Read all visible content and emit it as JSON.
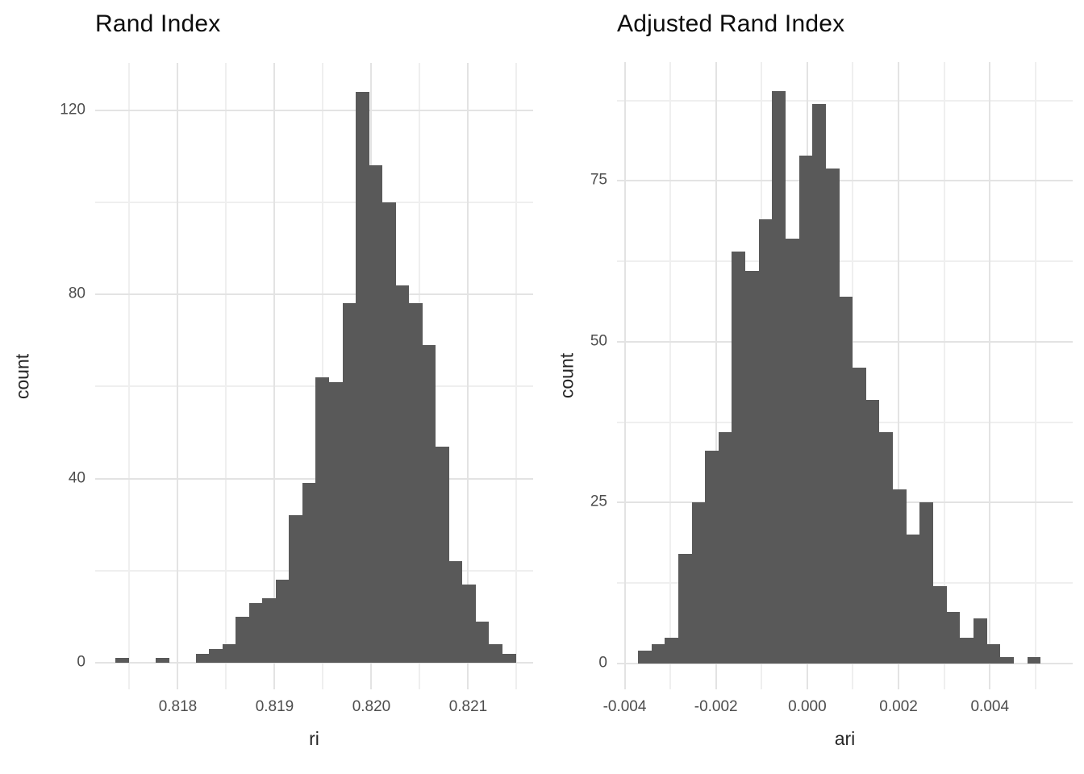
{
  "figure": {
    "background": "#ffffff"
  },
  "chart_data": [
    {
      "type": "histogram",
      "title": "Rand Index",
      "xlabel": "ri",
      "ylabel": "count",
      "bar_color": "#595959",
      "grid": {
        "major_color": "#e3e3e3",
        "minor_color": "#efefef",
        "grid_on": true
      },
      "legend": "none",
      "x_domain": [
        0.817146,
        0.821671
      ],
      "y_domain": [
        -5.78,
        130.25
      ],
      "x_ticks": [
        {
          "v": 0.818,
          "label": "0.818"
        },
        {
          "v": 0.819,
          "label": "0.819"
        },
        {
          "v": 0.82,
          "label": "0.820"
        },
        {
          "v": 0.821,
          "label": "0.821"
        }
      ],
      "y_ticks": [
        {
          "v": 0,
          "label": "0"
        },
        {
          "v": 40,
          "label": "40"
        },
        {
          "v": 80,
          "label": "80"
        },
        {
          "v": 120,
          "label": "120"
        }
      ],
      "x_minor": [
        0.8175,
        0.8185,
        0.8195,
        0.8205,
        0.8215
      ],
      "y_minor": [
        20,
        60,
        100
      ],
      "bins": {
        "start": 0.817358,
        "width": 0.0001378
      },
      "counts": [
        1,
        0,
        0,
        1,
        0,
        0,
        2,
        3,
        4,
        10,
        13,
        14,
        18,
        32,
        39,
        62,
        61,
        78,
        124,
        108,
        100,
        82,
        78,
        69,
        47,
        22,
        17,
        9,
        4,
        2
      ],
      "total_n": 1000
    },
    {
      "type": "histogram",
      "title": "Adjusted Rand Index",
      "xlabel": "ari",
      "ylabel": "count",
      "bar_color": "#595959",
      "grid": {
        "major_color": "#e3e3e3",
        "minor_color": "#efefef",
        "grid_on": true
      },
      "legend": "none",
      "x_domain": [
        -0.004168,
        0.005815
      ],
      "y_domain": [
        -4.05,
        93.49
      ],
      "x_ticks": [
        {
          "v": -0.004,
          "label": "-0.004"
        },
        {
          "v": -0.002,
          "label": "-0.002"
        },
        {
          "v": 0,
          "label": "0.000"
        },
        {
          "v": 0.002,
          "label": "0.002"
        },
        {
          "v": 0.004,
          "label": "0.004"
        }
      ],
      "y_ticks": [
        {
          "v": 0,
          "label": "0"
        },
        {
          "v": 25,
          "label": "25"
        },
        {
          "v": 50,
          "label": "50"
        },
        {
          "v": 75,
          "label": "75"
        }
      ],
      "x_minor": [
        -0.003,
        -0.001,
        0.001,
        0.003,
        0.005
      ],
      "y_minor": [
        12.5,
        37.5,
        62.5,
        87.5
      ],
      "bins": {
        "start": -0.003709,
        "width": 0.000294
      },
      "counts": [
        2,
        3,
        4,
        17,
        25,
        33,
        36,
        64,
        61,
        69,
        89,
        66,
        79,
        87,
        77,
        57,
        46,
        41,
        36,
        27,
        20,
        25,
        12,
        8,
        4,
        7,
        3,
        1,
        0,
        1
      ],
      "total_n": 1000
    }
  ]
}
